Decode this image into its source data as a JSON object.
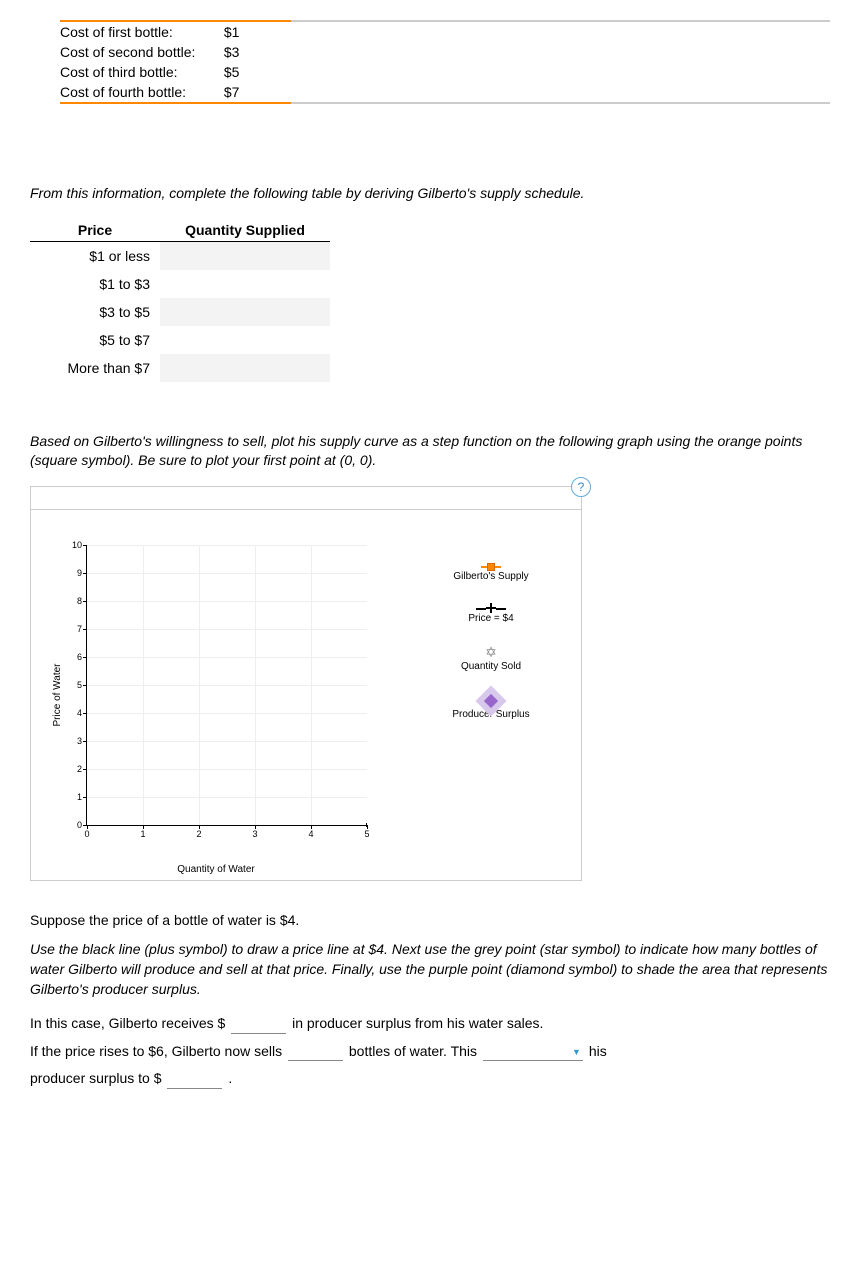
{
  "cost_table": {
    "rows": [
      {
        "label": "Cost of first bottle:",
        "value": "$1"
      },
      {
        "label": "Cost of second bottle:",
        "value": "$3"
      },
      {
        "label": "Cost of third bottle:",
        "value": "$5"
      },
      {
        "label": "Cost of fourth bottle:",
        "value": "$7"
      }
    ]
  },
  "instr1": "From this information, complete the following table by deriving Gilberto's supply schedule.",
  "supply_table": {
    "headers": [
      "Price",
      "Quantity Supplied"
    ],
    "rows": [
      "$1 or less",
      "$1 to $3",
      "$3 to $5",
      "$5 to $7",
      "More than $7"
    ]
  },
  "instr2": "Based on Gilberto's willingness to sell, plot his supply curve as a step function on the following graph using the orange points (square symbol). Be sure to plot your first point at (0, 0).",
  "help": "?",
  "chart": {
    "y_label": "Price of Water",
    "x_label": "Quantity of Water",
    "y_ticks": [
      0,
      1,
      2,
      3,
      4,
      5,
      6,
      7,
      8,
      9,
      10
    ],
    "x_ticks": [
      0,
      1,
      2,
      3,
      4,
      5
    ],
    "y_max": 10,
    "x_max": 5
  },
  "legend": {
    "supply": "Gilberto's Supply",
    "price": "Price = $4",
    "qty": "Quantity Sold",
    "surplus": "Producer Surplus"
  },
  "line_suppose": "Suppose the price of a bottle of water is $4.",
  "instr3": "Use the black line (plus symbol) to draw a price line at $4. Next use the grey point (star symbol) to indicate how many bottles of water Gilberto will produce and sell at that price. Finally, use the purple point (diamond symbol) to shade the area that represents Gilberto's producer surplus.",
  "sent1_a": "In this case, Gilberto receives $",
  "sent1_b": "in producer surplus from his water sales.",
  "sent2_a": "If the price rises to $6, Gilberto now sells",
  "sent2_b": "bottles of water. This",
  "sent2_c": "his",
  "sent3_a": "producer surplus to $",
  "sent3_b": "."
}
